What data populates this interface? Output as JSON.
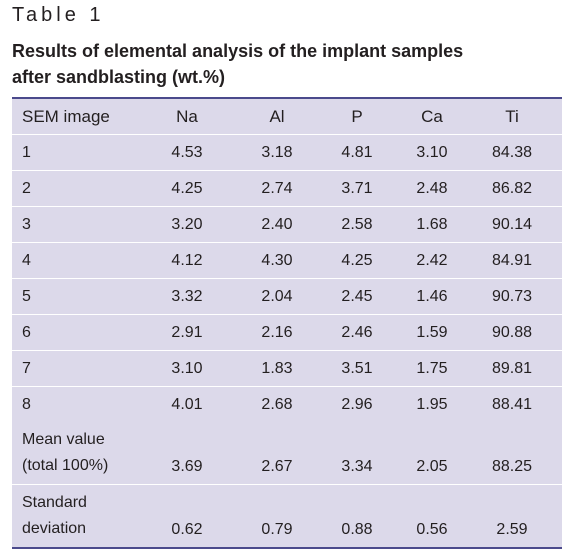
{
  "table": {
    "label": "Table 1",
    "title_line1": "Results of elemental analysis of the implant samples",
    "title_line2": "after sandblasting (wt.%)",
    "headers": [
      "SEM image",
      "Na",
      "Al",
      "P",
      "Ca",
      "Ti"
    ],
    "rows": [
      [
        "1",
        "4.53",
        "3.18",
        "4.81",
        "3.10",
        "84.38"
      ],
      [
        "2",
        "4.25",
        "2.74",
        "3.71",
        "2.48",
        "86.82"
      ],
      [
        "3",
        "3.20",
        "2.40",
        "2.58",
        "1.68",
        "90.14"
      ],
      [
        "4",
        "4.12",
        "4.30",
        "4.25",
        "2.42",
        "84.91"
      ],
      [
        "5",
        "3.32",
        "2.04",
        "2.45",
        "1.46",
        "90.73"
      ],
      [
        "6",
        "2.91",
        "2.16",
        "2.46",
        "1.59",
        "90.88"
      ],
      [
        "7",
        "3.10",
        "1.83",
        "3.51",
        "1.75",
        "89.81"
      ],
      [
        "8",
        "4.01",
        "2.68",
        "2.96",
        "1.95",
        "88.41"
      ]
    ],
    "mean": {
      "label_line1": "Mean value",
      "label_line2": "(total 100%)",
      "values": [
        "3.69",
        "2.67",
        "3.34",
        "2.05",
        "88.25"
      ]
    },
    "sd": {
      "label_line1": "Standard",
      "label_line2": "deviation",
      "values": [
        "0.62",
        "0.79",
        "0.88",
        "0.56",
        "2.59"
      ]
    }
  }
}
